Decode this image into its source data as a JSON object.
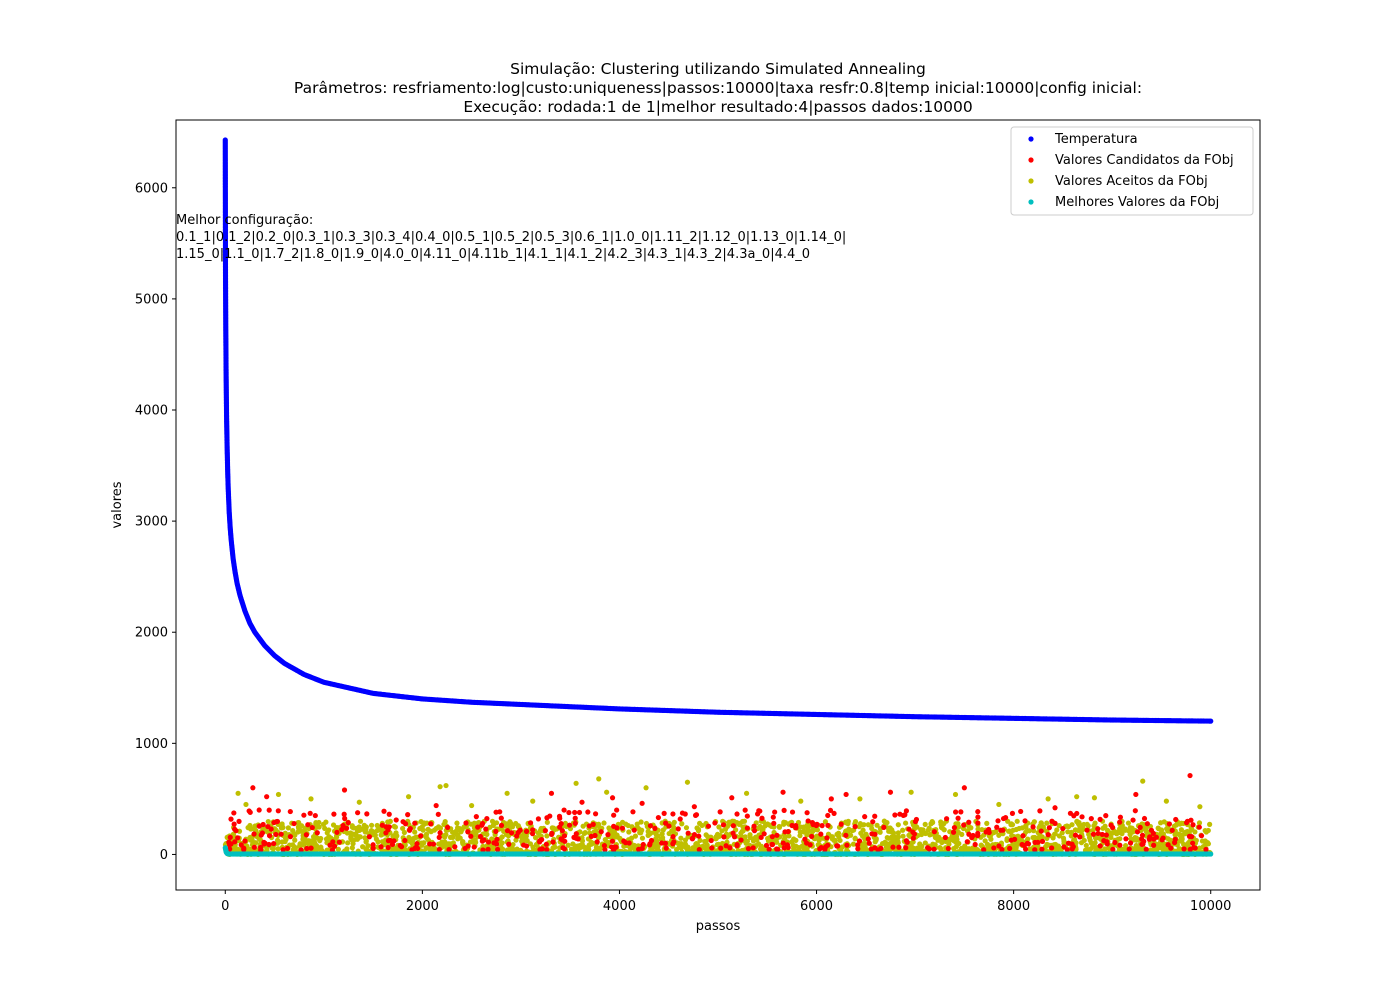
{
  "chart_data": {
    "type": "scatter",
    "title_lines": [
      "Simulação: Clustering utilizando Simulated Annealing",
      "Parâmetros: resfriamento:log|custo:uniqueness|passos:10000|taxa resfr:0.8|temp inicial:10000|config inicial:",
      "Execução: rodada:1 de 1|melhor resultado:4|passos dados:10000"
    ],
    "xlabel": "passos",
    "ylabel": "valores",
    "xlim": [
      -500,
      10500
    ],
    "ylim": [
      -320,
      6610
    ],
    "xticks": [
      0,
      2000,
      4000,
      6000,
      8000,
      10000
    ],
    "yticks": [
      0,
      1000,
      2000,
      3000,
      4000,
      5000,
      6000
    ],
    "grid": false,
    "legend_position": "top-right",
    "annotation": {
      "lines": [
        "Melhor configuração:",
        "0.1_1|0.1_2|0.2_0|0.3_1|0.3_3|0.3_4|0.4_0|0.5_1|0.5_2|0.5_3|0.6_1|1.0_0|1.11_2|1.12_0|1.13_0|1.14_0|",
        "1.15_0|1.1_0|1.7_2|1.8_0|1.9_0|4.0_0|4.11_0|4.11b_1|4.1_1|4.1_2|4.2_3|4.3_1|4.3_2|4.3a_0|4.4_0"
      ]
    },
    "series": [
      {
        "name": "Temperatura",
        "color": "#0000ff",
        "x": [
          0,
          2,
          5,
          8,
          11,
          14,
          17,
          20,
          25,
          30,
          40,
          50,
          60,
          80,
          100,
          120,
          150,
          200,
          250,
          300,
          400,
          500,
          600,
          800,
          1000,
          1500,
          2000,
          2500,
          3000,
          4000,
          5000,
          6000,
          7000,
          8000,
          9000,
          10000
        ],
        "y": [
          6430,
          5320,
          4740,
          4380,
          4110,
          3900,
          3750,
          3620,
          3430,
          3290,
          3080,
          2940,
          2830,
          2660,
          2540,
          2440,
          2330,
          2190,
          2080,
          2000,
          1880,
          1790,
          1720,
          1620,
          1550,
          1450,
          1400,
          1370,
          1350,
          1310,
          1280,
          1260,
          1240,
          1225,
          1210,
          1200
        ]
      },
      {
        "name": "Valores Candidatos da FObj",
        "color": "#ff0000",
        "x": [
          280,
          420,
          1210,
          2140,
          3310,
          3620,
          3930,
          4230,
          4760,
          5140,
          5660,
          6150,
          6300,
          6750,
          7500,
          8420,
          9240,
          9790
        ],
        "y": [
          600,
          520,
          580,
          440,
          550,
          470,
          510,
          460,
          430,
          510,
          560,
          500,
          540,
          560,
          600,
          420,
          540,
          710
        ]
      },
      {
        "name": "Valores Aceitos da FObj",
        "color": "#bfbf00",
        "x": [
          130,
          210,
          540,
          870,
          1360,
          1860,
          2180,
          2240,
          2500,
          2860,
          3120,
          3560,
          3790,
          3870,
          4270,
          4690,
          5290,
          5840,
          6440,
          6960,
          7410,
          7850,
          8350,
          8640,
          8820,
          9310,
          9550,
          9890
        ],
        "y": [
          550,
          450,
          540,
          500,
          470,
          520,
          610,
          620,
          440,
          550,
          480,
          640,
          680,
          560,
          600,
          650,
          550,
          480,
          500,
          560,
          540,
          450,
          500,
          520,
          510,
          660,
          480,
          430
        ],
        "dense_band": [
          0,
          300
        ]
      },
      {
        "name": "Melhores Valores da FObj",
        "color": "#00bfbf",
        "x": [
          0,
          5,
          10,
          20,
          40,
          10000
        ],
        "y": [
          60,
          40,
          20,
          8,
          4,
          4
        ]
      }
    ]
  }
}
